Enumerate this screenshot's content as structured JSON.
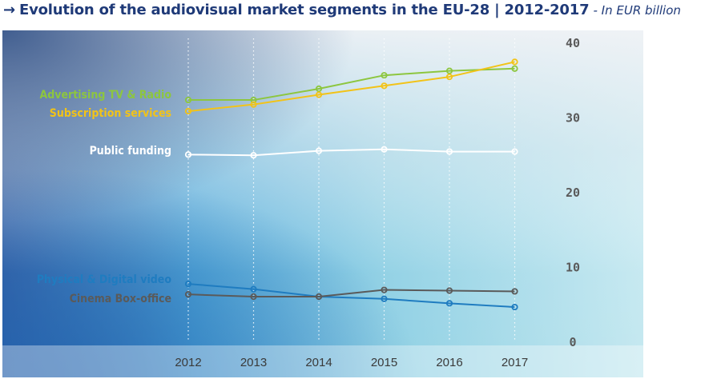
{
  "header": {
    "arrow": "→",
    "title": "Evolution of the audiovisual market segments in the EU-28 | 2012-2017",
    "unit": "- In EUR billion"
  },
  "chart_data": {
    "type": "line",
    "title": "Evolution of the audiovisual market segments in the EU-28 | 2012-2017",
    "ylabel": "In EUR billion",
    "xlabel": "",
    "categories": [
      "2012",
      "2013",
      "2014",
      "2015",
      "2016",
      "2017"
    ],
    "ylim": [
      0,
      40
    ],
    "yticks": [
      0,
      10,
      20,
      30,
      40
    ],
    "grid": "vertical dotted lines at each year",
    "series": [
      {
        "name": "Advertising TV & Radio",
        "color": "#8dc63f",
        "values": [
          32.4,
          32.4,
          33.9,
          35.7,
          36.3,
          36.6
        ]
      },
      {
        "name": "Subscription services",
        "color": "#f2c318",
        "values": [
          30.9,
          31.8,
          33.1,
          34.3,
          35.5,
          37.5
        ]
      },
      {
        "name": "Public funding",
        "color": "#ffffff",
        "values": [
          25.1,
          25.0,
          25.6,
          25.8,
          25.5,
          25.5
        ]
      },
      {
        "name": "Physical & Digital video",
        "color": "#1f7cc0",
        "values": [
          7.8,
          7.1,
          6.1,
          5.8,
          5.2,
          4.7
        ]
      },
      {
        "name": "Cinema Box-office",
        "color": "#5a5a5a",
        "values": [
          6.4,
          6.1,
          6.1,
          7.0,
          6.9,
          6.8
        ]
      }
    ]
  }
}
